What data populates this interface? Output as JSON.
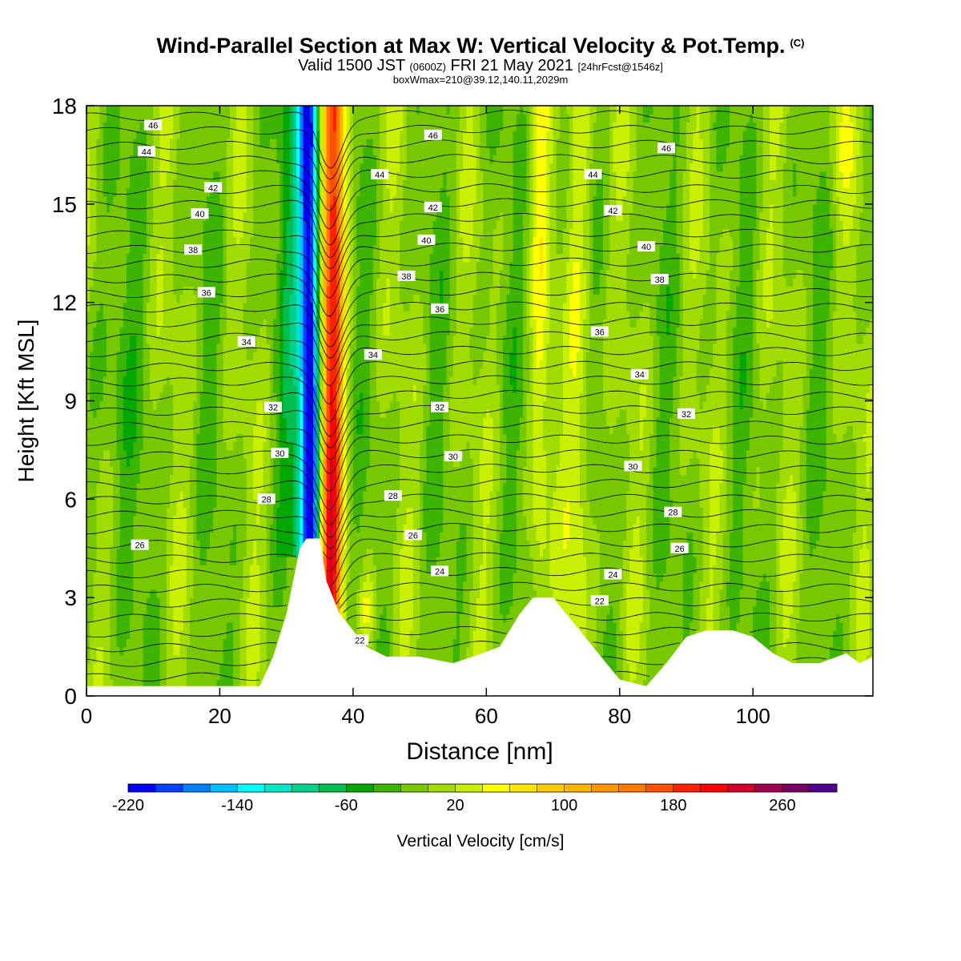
{
  "title": {
    "line1": "Wind-Parallel Section at Max W: Vertical Velocity & Pot.Temp.",
    "copyright": "(C)",
    "line2_a": "Valid 1500 JST",
    "line2_b": "(0600Z)",
    "line2_c": "FRI 21 May 2021",
    "line2_d": "[24hrFcst@1546z]",
    "line3": "boxWmax=210@39.12,140.11,2029m"
  },
  "chart_data": {
    "type": "heatmap",
    "xlabel": "Distance [nm]",
    "ylabel": "Height [Kft MSL]",
    "xlim": [
      0,
      118
    ],
    "ylim": [
      0,
      18
    ],
    "x_ticks": [
      0,
      20,
      40,
      60,
      80,
      100
    ],
    "y_ticks": [
      0,
      3,
      6,
      9,
      12,
      15,
      18
    ],
    "colorbar": {
      "label": "Vertical Velocity [cm/s]",
      "min": -220,
      "max": 280,
      "step": 20,
      "tick_labels": [
        -220,
        -140,
        -60,
        20,
        100,
        180,
        260
      ],
      "colors": [
        "#0000ff",
        "#0040ff",
        "#0080ff",
        "#00c0ff",
        "#00ffff",
        "#00e6c8",
        "#00d28c",
        "#00be50",
        "#00a800",
        "#3cb400",
        "#78c800",
        "#a0dc00",
        "#c8f000",
        "#ffff00",
        "#ffe600",
        "#ffcc00",
        "#ffb400",
        "#ff9600",
        "#ff7800",
        "#ff5000",
        "#ff2000",
        "#ff0000",
        "#d20028",
        "#a00050",
        "#780064",
        "#50008c"
      ]
    },
    "updraft_core": {
      "x": 37,
      "max_w": 210
    },
    "downdraft_core": {
      "x": 33.5,
      "min_w": -220
    },
    "terrain": [
      [
        0,
        0.3
      ],
      [
        26,
        0.3
      ],
      [
        28,
        1.2
      ],
      [
        30,
        2.5
      ],
      [
        31,
        3.5
      ],
      [
        32,
        4.5
      ],
      [
        33,
        4.8
      ],
      [
        35,
        4.8
      ],
      [
        36,
        3.5
      ],
      [
        37,
        3
      ],
      [
        38,
        2.5
      ],
      [
        40,
        2
      ],
      [
        42,
        1.5
      ],
      [
        45,
        1.2
      ],
      [
        50,
        1.2
      ],
      [
        55,
        1
      ],
      [
        58,
        1.2
      ],
      [
        62,
        1.5
      ],
      [
        65,
        2.5
      ],
      [
        67,
        3
      ],
      [
        70,
        3
      ],
      [
        72,
        2.5
      ],
      [
        74,
        2
      ],
      [
        78,
        1
      ],
      [
        80,
        0.5
      ],
      [
        84,
        0.3
      ],
      [
        87,
        1
      ],
      [
        90,
        1.8
      ],
      [
        93,
        2
      ],
      [
        97,
        2
      ],
      [
        100,
        1.8
      ],
      [
        103,
        1.3
      ],
      [
        106,
        1
      ],
      [
        110,
        1
      ],
      [
        114,
        1.3
      ],
      [
        116,
        1
      ],
      [
        118,
        1.2
      ]
    ],
    "theta_contours": [
      {
        "label": "22",
        "x": 41,
        "y": 1.7
      },
      {
        "label": "22",
        "x": 77,
        "y": 2.9
      },
      {
        "label": "24",
        "x": 53,
        "y": 3.8
      },
      {
        "label": "24",
        "x": 79,
        "y": 3.7
      },
      {
        "label": "26",
        "x": 8,
        "y": 4.6
      },
      {
        "label": "26",
        "x": 49,
        "y": 4.9
      },
      {
        "label": "26",
        "x": 89,
        "y": 4.5
      },
      {
        "label": "28",
        "x": 27,
        "y": 6
      },
      {
        "label": "28",
        "x": 46,
        "y": 6.1
      },
      {
        "label": "28",
        "x": 88,
        "y": 5.6
      },
      {
        "label": "30",
        "x": 29,
        "y": 7.4
      },
      {
        "label": "30",
        "x": 55,
        "y": 7.3
      },
      {
        "label": "30",
        "x": 82,
        "y": 7
      },
      {
        "label": "32",
        "x": 28,
        "y": 8.8
      },
      {
        "label": "32",
        "x": 53,
        "y": 8.8
      },
      {
        "label": "32",
        "x": 90,
        "y": 8.6
      },
      {
        "label": "34",
        "x": 24,
        "y": 10.8
      },
      {
        "label": "34",
        "x": 43,
        "y": 10.4
      },
      {
        "label": "34",
        "x": 83,
        "y": 9.8
      },
      {
        "label": "36",
        "x": 18,
        "y": 12.3
      },
      {
        "label": "36",
        "x": 53,
        "y": 11.8
      },
      {
        "label": "36",
        "x": 77,
        "y": 11.1
      },
      {
        "label": "38",
        "x": 16,
        "y": 13.6
      },
      {
        "label": "38",
        "x": 48,
        "y": 12.8
      },
      {
        "label": "38",
        "x": 86,
        "y": 12.7
      },
      {
        "label": "40",
        "x": 17,
        "y": 14.7
      },
      {
        "label": "40",
        "x": 51,
        "y": 13.9
      },
      {
        "label": "40",
        "x": 84,
        "y": 13.7
      },
      {
        "label": "42",
        "x": 19,
        "y": 15.5
      },
      {
        "label": "42",
        "x": 52,
        "y": 14.9
      },
      {
        "label": "42",
        "x": 79,
        "y": 14.8
      },
      {
        "label": "44",
        "x": 9,
        "y": 16.6
      },
      {
        "label": "44",
        "x": 44,
        "y": 15.9
      },
      {
        "label": "44",
        "x": 76,
        "y": 15.9
      },
      {
        "label": "46",
        "x": 10,
        "y": 17.4
      },
      {
        "label": "46",
        "x": 52,
        "y": 17.1
      },
      {
        "label": "46",
        "x": 87,
        "y": 16.7
      }
    ]
  }
}
